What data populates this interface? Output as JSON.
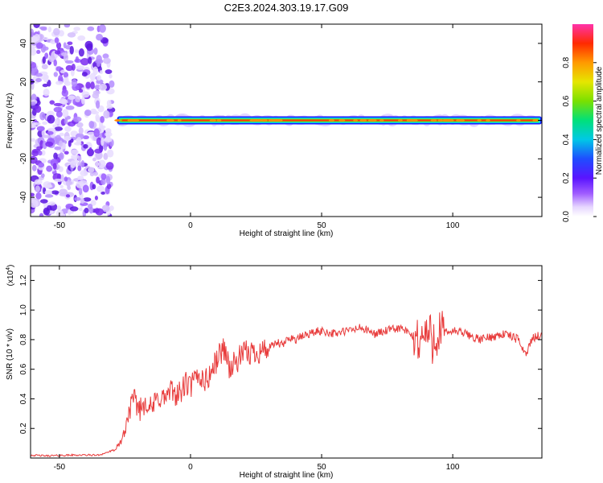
{
  "title": "C2E3.2024.303.19.17.G09",
  "chart_data": [
    {
      "type": "heatmap",
      "xlabel": "Height of straight line (km)",
      "ylabel": "Frequency (Hz)",
      "xlim": [
        -61,
        134
      ],
      "ylim": [
        -50,
        50
      ],
      "x_ticks": [
        -50,
        0,
        50,
        100
      ],
      "x_tick_labels": [
        "-50",
        "0",
        "50",
        "100"
      ],
      "y_ticks": [
        -40,
        -20,
        0,
        20,
        40
      ],
      "y_tick_labels": [
        "-40",
        "-20",
        "0",
        "20",
        "40"
      ],
      "noise_region_x": [
        -61,
        -30
      ],
      "signal_line": {
        "x_start": -28,
        "x_end": 134,
        "frequency_hz": 0
      },
      "colorbar": {
        "label": "Normalized spectral amplitude",
        "range": [
          0.0,
          1.0
        ],
        "ticks": [
          0.0,
          0.2,
          0.4,
          0.6,
          0.8
        ],
        "tick_labels": [
          "0.0",
          "0.2",
          "0.4",
          "0.6",
          "0.8"
        ]
      }
    },
    {
      "type": "line",
      "xlabel": "Height of straight line (km)",
      "ylabel": "SNR (10 * v/v)",
      "scale_label": "(x10",
      "scale_exp": "4",
      "scale_close": ")",
      "xlim": [
        -61,
        134
      ],
      "ylim": [
        0,
        1.3
      ],
      "x_ticks": [
        -50,
        0,
        50,
        100
      ],
      "x_tick_labels": [
        "-50",
        "0",
        "50",
        "100"
      ],
      "y_ticks": [
        0.2,
        0.4,
        0.6,
        0.8,
        1.0,
        1.2
      ],
      "y_tick_labels": [
        "0.2",
        "0.4",
        "0.6",
        "0.8",
        "1.0",
        "1.2"
      ],
      "series": [
        {
          "color": "#e83c3c",
          "x": [
            -61,
            -55,
            -45,
            -35,
            -28,
            -25,
            -23,
            -21,
            -19,
            -17,
            -15,
            -12,
            -10,
            -7,
            -4,
            -2,
            0,
            3,
            6,
            9,
            11,
            13,
            15,
            20,
            25,
            30,
            33,
            35,
            38,
            40,
            45,
            50,
            55,
            60,
            65,
            70,
            75,
            80,
            85,
            88,
            90,
            92,
            94,
            96,
            100,
            105,
            110,
            115,
            120,
            125,
            128,
            130,
            134
          ],
          "y": [
            0.02,
            0.015,
            0.02,
            0.02,
            0.06,
            0.18,
            0.35,
            0.38,
            0.33,
            0.4,
            0.32,
            0.42,
            0.4,
            0.45,
            0.43,
            0.5,
            0.48,
            0.56,
            0.52,
            0.62,
            0.7,
            0.75,
            0.6,
            0.7,
            0.72,
            0.74,
            0.78,
            0.76,
            0.82,
            0.8,
            0.84,
            0.86,
            0.84,
            0.86,
            0.88,
            0.84,
            0.86,
            0.88,
            0.82,
            0.8,
            0.85,
            0.8,
            0.85,
            0.84,
            0.86,
            0.84,
            0.8,
            0.82,
            0.84,
            0.8,
            0.7,
            0.8,
            0.84
          ]
        }
      ]
    }
  ]
}
